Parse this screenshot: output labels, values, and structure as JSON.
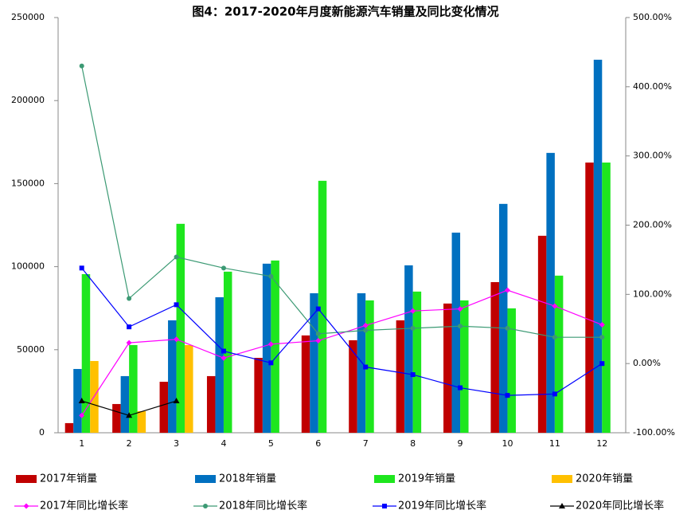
{
  "chart_data": {
    "type": "bar",
    "title": "图4：2017-2020年月度新能源汽车销量及同比变化情况",
    "categories": [
      "1",
      "2",
      "3",
      "4",
      "5",
      "6",
      "7",
      "8",
      "9",
      "10",
      "11",
      "12"
    ],
    "ylim": [
      0,
      250000
    ],
    "yticks": [
      0,
      50000,
      100000,
      150000,
      200000,
      250000
    ],
    "y2lim": [
      -100,
      500
    ],
    "y2ticks": [
      {
        "value": -100,
        "label": "-100.00%"
      },
      {
        "value": 0,
        "label": "0.00%"
      },
      {
        "value": 100,
        "label": "100.00%"
      },
      {
        "value": 200,
        "label": "200.00%"
      },
      {
        "value": 300,
        "label": "300.00%"
      },
      {
        "value": 400,
        "label": "400.00%"
      },
      {
        "value": 500,
        "label": "500.00%"
      }
    ],
    "grid": false,
    "series": [
      {
        "name": "2017年销量",
        "type": "bar",
        "color": "#c00000",
        "values": [
          5800,
          17300,
          30700,
          34100,
          45100,
          58600,
          55700,
          67700,
          77800,
          90700,
          118600,
          162700
        ]
      },
      {
        "name": "2018年销量",
        "type": "bar",
        "color": "#0070c0",
        "values": [
          38400,
          34100,
          67700,
          81600,
          101800,
          84000,
          84000,
          100800,
          120500,
          137800,
          168500,
          224600
        ]
      },
      {
        "name": "2019年销量",
        "type": "bar",
        "color": "#1ee61e",
        "values": [
          95500,
          52800,
          125800,
          97000,
          103700,
          151700,
          79700,
          85000,
          79700,
          74900,
          94600,
          162700
        ]
      },
      {
        "name": "2020年销量",
        "type": "bar",
        "color": "#ffc000",
        "values": [
          43200,
          13000,
          52800,
          null,
          null,
          null,
          null,
          null,
          null,
          null,
          null,
          null
        ]
      },
      {
        "name": "2017年同比增长率",
        "type": "line",
        "axis": "y2",
        "marker": "diamond",
        "color": "#ff00ff",
        "values": [
          -75,
          30,
          35,
          8,
          28,
          33,
          55,
          76,
          79,
          106,
          83,
          56
        ]
      },
      {
        "name": "2018年同比增长率",
        "type": "line",
        "axis": "y2",
        "marker": "circle",
        "color": "#3c9a74",
        "values": [
          430,
          94,
          154,
          138,
          126,
          43,
          48,
          51,
          54,
          51,
          38,
          38
        ]
      },
      {
        "name": "2019年同比增长率",
        "type": "line",
        "axis": "y2",
        "marker": "square",
        "color": "#0000ff",
        "values": [
          138,
          53,
          85,
          18,
          1,
          79,
          -5,
          -16,
          -35,
          -46,
          -44,
          0
        ]
      },
      {
        "name": "2020年同比增长率",
        "type": "line",
        "axis": "y2",
        "marker": "triangle",
        "color": "#000000",
        "values": [
          -54,
          -75,
          -54,
          null,
          null,
          null,
          null,
          null,
          null,
          null,
          null,
          null
        ]
      }
    ]
  }
}
